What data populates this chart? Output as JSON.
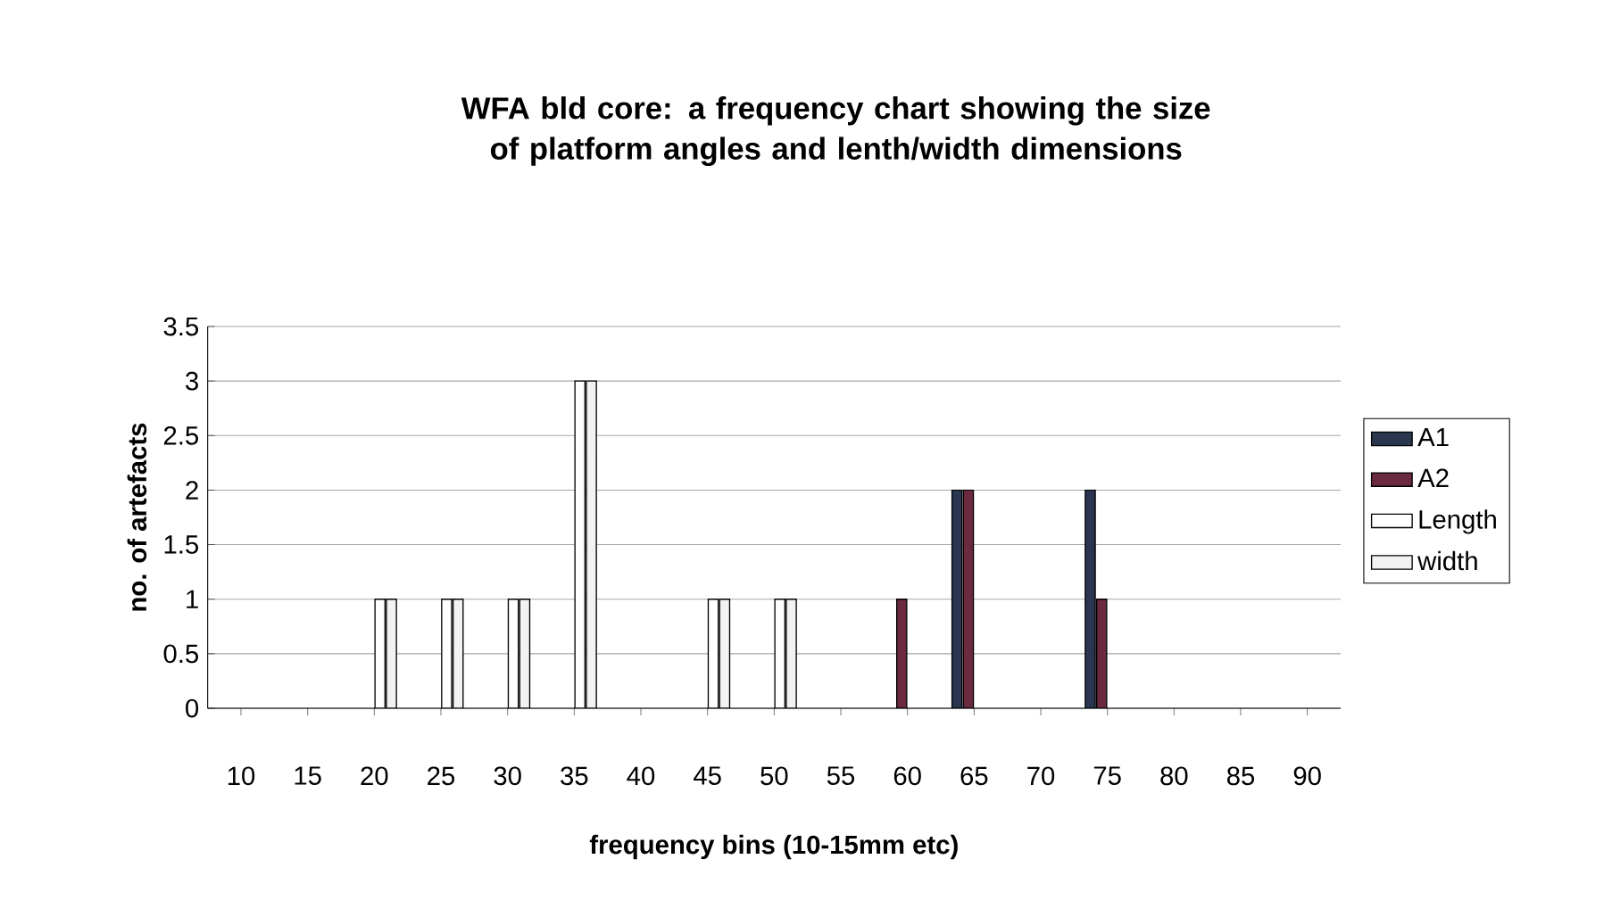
{
  "chart_data": {
    "type": "bar",
    "title": "WFA bld core: a frequency chart showing the size of platform angles and lenth/width dimensions",
    "xlabel": "frequency bins (10-15mm etc)",
    "ylabel": "no. of artefacts",
    "categories": [
      "10",
      "15",
      "20",
      "25",
      "30",
      "35",
      "40",
      "45",
      "50",
      "55",
      "60",
      "65",
      "70",
      "75",
      "80",
      "85",
      "90"
    ],
    "series": [
      {
        "name": "A1",
        "color": "#2a3550",
        "values": [
          null,
          null,
          null,
          null,
          null,
          null,
          null,
          null,
          null,
          null,
          null,
          2,
          null,
          2,
          null,
          null,
          null
        ]
      },
      {
        "name": "A2",
        "color": "#6b2a3f",
        "values": [
          null,
          null,
          null,
          null,
          null,
          null,
          null,
          null,
          null,
          null,
          1,
          2,
          null,
          1,
          null,
          null,
          null
        ]
      },
      {
        "name": "Length",
        "color": "#ffffff",
        "values": [
          null,
          null,
          1,
          1,
          1,
          3,
          null,
          1,
          1,
          null,
          null,
          null,
          null,
          null,
          null,
          null,
          null
        ]
      },
      {
        "name": "width",
        "color": "#f2f2f2",
        "values": [
          null,
          null,
          1,
          1,
          1,
          3,
          null,
          1,
          1,
          null,
          null,
          null,
          null,
          null,
          null,
          null,
          null
        ]
      }
    ],
    "ylim": [
      0,
      3.5
    ],
    "yticks": [
      0,
      0.5,
      1,
      1.5,
      2,
      2.5,
      3,
      3.5
    ],
    "grid": "y",
    "legend": "right"
  }
}
